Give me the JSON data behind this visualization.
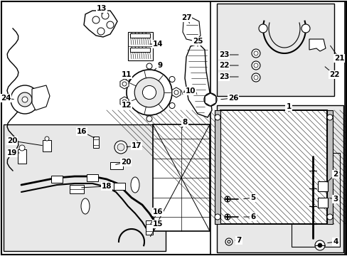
{
  "bg_color": "#ffffff",
  "line_color": "#000000",
  "text_color": "#000000",
  "box_bg": "#e8e8e8",
  "white": "#ffffff",
  "label_fs": 7.0,
  "bold_fs": 8.0
}
